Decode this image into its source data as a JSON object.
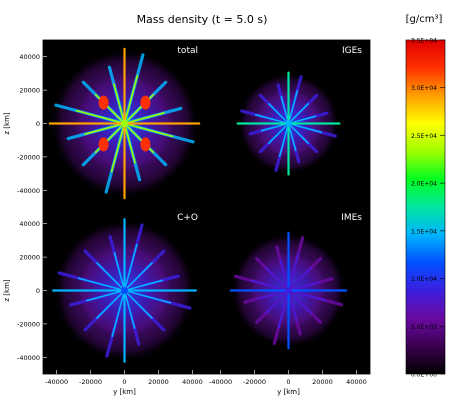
{
  "chart_data": {
    "type": "heatmap",
    "title": "Mass density (t = 5.0 s)",
    "colorbar": {
      "unit_label": "[g/cm³]",
      "range": [
        0,
        35000
      ],
      "ticks": [
        "0.0E+00",
        "5.0E+03",
        "1.0E+04",
        "1.5E+04",
        "2.0E+04",
        "2.5E+04",
        "3.0E+04",
        "3.5E+04"
      ],
      "tick_values": [
        0,
        5000,
        10000,
        15000,
        20000,
        25000,
        30000,
        35000
      ],
      "colormap": [
        "#000000",
        "#3a0050",
        "#6a0aa0",
        "#3c1ee0",
        "#0050ff",
        "#00b4ff",
        "#00e6a0",
        "#00ff20",
        "#a0ff00",
        "#ffff00",
        "#ffa000",
        "#ff3000",
        "#e00000"
      ]
    },
    "xlabel": "y [km]",
    "ylabel": "z [km]",
    "xlim": [
      -48000,
      48000
    ],
    "ylim": [
      -50000,
      50000
    ],
    "x_ticks": [
      "-40000",
      "-20000",
      "0",
      "20000",
      "40000"
    ],
    "x_tick_values": [
      -40000,
      -20000,
      0,
      20000,
      40000
    ],
    "y_ticks": [
      "40000",
      "20000",
      "0",
      "-20000",
      "-40000"
    ],
    "y_tick_values": [
      40000,
      20000,
      0,
      -20000,
      -40000
    ],
    "panels": [
      {
        "label": "total",
        "peak_density": 35000,
        "outer_radius_km": 44000
      },
      {
        "label": "IGEs",
        "peak_density": 22000,
        "outer_radius_km": 30000
      },
      {
        "label": "C+O",
        "peak_density": 20000,
        "outer_radius_km": 42000
      },
      {
        "label": "IMEs",
        "peak_density": 14000,
        "outer_radius_km": 34000
      }
    ]
  }
}
